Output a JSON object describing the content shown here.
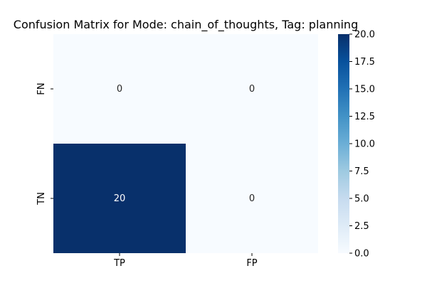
{
  "chart_data": {
    "type": "heatmap",
    "title": "Confusion Matrix for Mode: chain_of_thoughts, Tag: planning",
    "xlabel": "",
    "ylabel": "",
    "x_categories": [
      "TP",
      "FP"
    ],
    "y_categories": [
      "FN",
      "TN"
    ],
    "values": [
      [
        0,
        0
      ],
      [
        20,
        0
      ]
    ],
    "colormap": "Blues",
    "colorbar": {
      "range": [
        0,
        20
      ],
      "ticks": [
        0,
        2.5,
        5,
        7.5,
        10,
        12.5,
        15,
        17.5,
        20
      ],
      "tick_labels": [
        "0.0",
        "2.5",
        "5.0",
        "7.5",
        "10.0",
        "12.5",
        "15.0",
        "17.5",
        "20.0"
      ]
    },
    "annotated": true,
    "grid": false
  }
}
